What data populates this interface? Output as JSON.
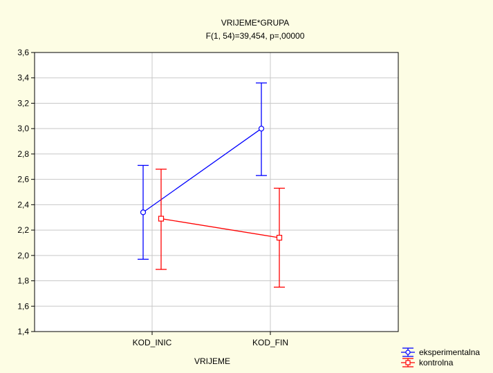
{
  "chart_data": {
    "type": "line",
    "title": "VRIJEME*GRUPA",
    "subtitle": "F(1, 54)=39,454, p=,00000",
    "xlabel": "VRIJEME",
    "ylabel": "",
    "categories": [
      "KOD_INIC",
      "KOD_FIN"
    ],
    "ylim": [
      1.4,
      3.6
    ],
    "yticks": [
      "1,4",
      "1,6",
      "1,8",
      "2,0",
      "2,2",
      "2,4",
      "2,6",
      "2,8",
      "3,0",
      "3,2",
      "3,4",
      "3,6"
    ],
    "grid": true,
    "legend_position": "bottom-right",
    "series": [
      {
        "name": "eksperimentalna",
        "color": "#0000ff",
        "marker": "circle",
        "values": [
          2.34,
          3.0
        ],
        "lower": [
          1.97,
          2.63
        ],
        "upper": [
          2.71,
          3.36
        ]
      },
      {
        "name": "kontrolna",
        "color": "#ff0000",
        "marker": "square",
        "values": [
          2.29,
          2.14
        ],
        "lower": [
          1.89,
          1.75
        ],
        "upper": [
          2.68,
          2.53
        ]
      }
    ]
  }
}
